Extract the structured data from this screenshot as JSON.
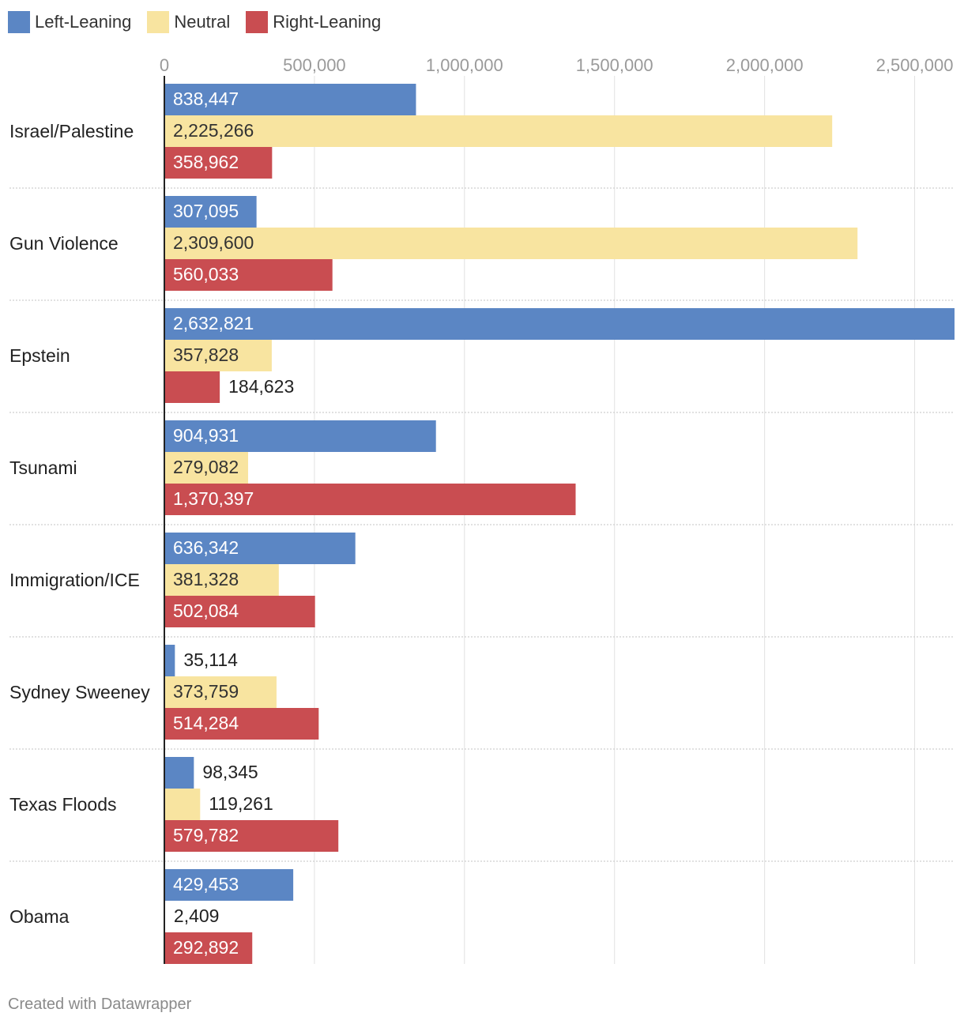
{
  "chart_data": {
    "type": "bar",
    "orientation": "horizontal",
    "grouped": true,
    "categories": [
      "Israel/Palestine",
      "Gun Violence",
      "Epstein",
      "Tsunami",
      "Immigration/ICE",
      "Sydney Sweeney",
      "Texas Floods",
      "Obama"
    ],
    "series": [
      {
        "name": "Left-Leaning",
        "color": "#5b86c4",
        "values": [
          838447,
          307095,
          2632821,
          904931,
          636342,
          35114,
          98345,
          429453
        ]
      },
      {
        "name": "Neutral",
        "color": "#f8e4a0",
        "values": [
          2225266,
          2309600,
          357828,
          279082,
          381328,
          373759,
          119261,
          2409
        ]
      },
      {
        "name": "Right-Leaning",
        "color": "#c94d51",
        "values": [
          358962,
          560033,
          184623,
          1370397,
          502084,
          514284,
          579782,
          292892
        ]
      }
    ],
    "xlim": [
      0,
      2632821
    ],
    "tick_labels": [
      "0",
      "500,000",
      "1,000,000",
      "1,500,000",
      "2,000,000",
      "2,500,000"
    ],
    "tick_values": [
      0,
      500000,
      1000000,
      1500000,
      2000000,
      2500000
    ],
    "legend_position": "top-left",
    "grid": true
  },
  "footer": {
    "credit": "Created with Datawrapper"
  }
}
